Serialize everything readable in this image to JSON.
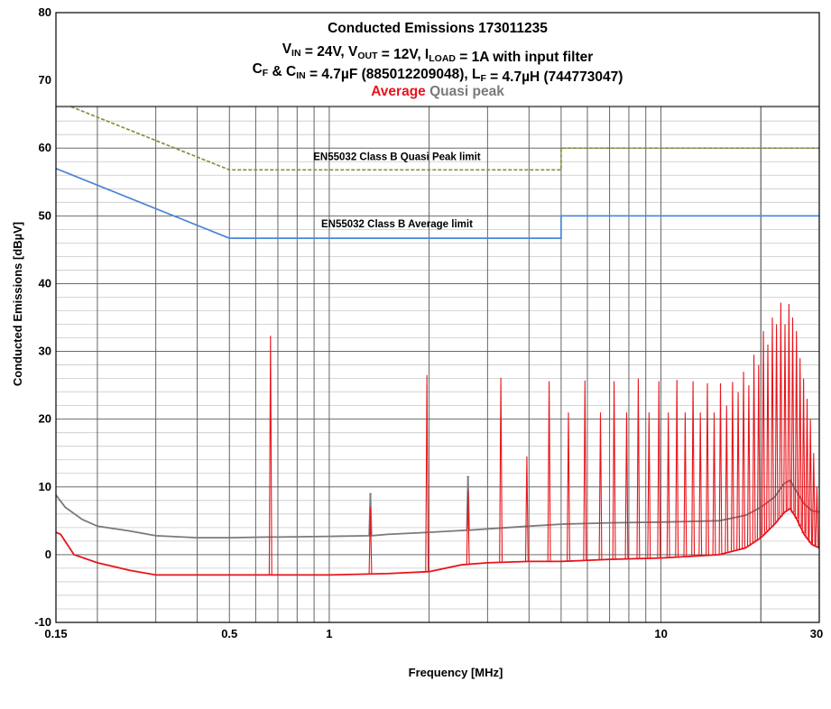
{
  "chart_data": {
    "type": "line",
    "title": "Conducted Emissions 173011235",
    "subtitle_lines": [
      [
        {
          "text": "V",
          "sub": false
        },
        {
          "text": "IN",
          "sub": true
        },
        {
          "text": " = 24V, V",
          "sub": false
        },
        {
          "text": "OUT",
          "sub": true
        },
        {
          "text": " = 12V, I",
          "sub": false
        },
        {
          "text": "LOAD",
          "sub": true
        },
        {
          "text": " = 1A with input filter",
          "sub": false
        }
      ],
      [
        {
          "text": "C",
          "sub": false
        },
        {
          "text": "F",
          "sub": true
        },
        {
          "text": " & C",
          "sub": false
        },
        {
          "text": "IN",
          "sub": true
        },
        {
          "text": " = 4.7µF (885012209048), L",
          "sub": false
        },
        {
          "text": "F",
          "sub": true
        },
        {
          "text": " = 4.7µH (744773047)",
          "sub": false
        }
      ]
    ],
    "legend": [
      {
        "label": "Average",
        "color": "#e8141b"
      },
      {
        "label": "Quasi peak",
        "color": "#7a7a7a"
      }
    ],
    "legend_position": "top-center",
    "xlabel": "Frequency [MHz]",
    "ylabel": "Conducted Emissions [dBµV]",
    "x_scale": "log",
    "xlim": [
      0.15,
      30
    ],
    "ylim": [
      -10,
      80
    ],
    "x_tick_labels": [
      {
        "value": 0.15,
        "label": "0.15"
      },
      {
        "value": 0.5,
        "label": "0.5"
      },
      {
        "value": 1,
        "label": "1"
      },
      {
        "value": 10,
        "label": "10"
      },
      {
        "value": 30,
        "label": "30"
      }
    ],
    "y_ticks": [
      -10,
      0,
      10,
      20,
      30,
      40,
      50,
      60,
      70,
      80
    ],
    "grid": true,
    "limits": [
      {
        "name": "EN55032 Class B Quasi Peak limit",
        "color": "#8a8f3a",
        "style": "dashed",
        "points": [
          [
            0.15,
            67
          ],
          [
            0.5,
            56.8
          ],
          [
            5,
            56.8
          ],
          [
            5,
            60
          ],
          [
            30,
            60
          ]
        ],
        "label_at": [
          1.6,
          58.2
        ]
      },
      {
        "name": "EN55032 Class B Average limit",
        "color": "#4a86d6",
        "style": "solid",
        "points": [
          [
            0.15,
            57
          ],
          [
            0.5,
            46.7
          ],
          [
            5,
            46.7
          ],
          [
            5,
            50
          ],
          [
            30,
            50
          ]
        ],
        "label_at": [
          1.6,
          48.3
        ]
      }
    ],
    "series": [
      {
        "name": "Quasi peak",
        "color": "#7a7a7a",
        "points": [
          [
            0.15,
            8.8
          ],
          [
            0.16,
            7
          ],
          [
            0.18,
            5.2
          ],
          [
            0.2,
            4.2
          ],
          [
            0.25,
            3.5
          ],
          [
            0.3,
            2.8
          ],
          [
            0.4,
            2.5
          ],
          [
            0.5,
            2.5
          ],
          [
            0.65,
            2.6
          ],
          [
            0.67,
            2.6
          ],
          [
            0.68,
            2.6
          ],
          [
            0.7,
            2.6
          ],
          [
            1,
            2.7
          ],
          [
            1.32,
            2.8
          ],
          [
            1.33,
            9
          ],
          [
            1.34,
            2.8
          ],
          [
            1.5,
            3
          ],
          [
            2,
            3.3
          ],
          [
            2.6,
            3.6
          ],
          [
            2.62,
            11.5
          ],
          [
            2.64,
            3.6
          ],
          [
            3,
            3.8
          ],
          [
            4,
            4.2
          ],
          [
            5,
            4.5
          ],
          [
            7,
            4.7
          ],
          [
            10,
            4.8
          ],
          [
            15,
            5.0
          ],
          [
            18,
            5.8
          ],
          [
            20,
            7
          ],
          [
            22,
            8.5
          ],
          [
            23.5,
            10.5
          ],
          [
            24.5,
            11
          ],
          [
            25.5,
            9.5
          ],
          [
            27,
            7.5
          ],
          [
            28.5,
            6.5
          ],
          [
            30,
            6.3
          ]
        ],
        "peaks": [
          [
            1.33,
            9
          ],
          [
            2.62,
            11.5
          ]
        ]
      },
      {
        "name": "Average",
        "color": "#e8141b",
        "points": [
          [
            0.15,
            3.3
          ],
          [
            0.155,
            3
          ],
          [
            0.17,
            0
          ],
          [
            0.2,
            -1.2
          ],
          [
            0.25,
            -2.3
          ],
          [
            0.3,
            -3
          ],
          [
            0.4,
            -3
          ],
          [
            0.5,
            -3
          ],
          [
            0.6,
            -3
          ],
          [
            0.8,
            -3
          ],
          [
            1,
            -3
          ],
          [
            1.5,
            -2.8
          ],
          [
            2,
            -2.5
          ],
          [
            2.5,
            -1.5
          ],
          [
            3,
            -1.2
          ],
          [
            4,
            -1
          ],
          [
            5,
            -1
          ],
          [
            7,
            -0.7
          ],
          [
            10,
            -0.5
          ],
          [
            15,
            0
          ],
          [
            18,
            1
          ],
          [
            20,
            2.5
          ],
          [
            22,
            4.5
          ],
          [
            23.5,
            6.2
          ],
          [
            24.5,
            6.8
          ],
          [
            25.5,
            5.5
          ],
          [
            27,
            3
          ],
          [
            28.5,
            1.5
          ],
          [
            30,
            1
          ]
        ],
        "peaks": [
          [
            0.665,
            32.3
          ],
          [
            1.33,
            7
          ],
          [
            1.97,
            26.5
          ],
          [
            2.62,
            9.5
          ],
          [
            3.29,
            26.1
          ],
          [
            3.94,
            14.5
          ],
          [
            4.6,
            25.6
          ],
          [
            5.26,
            21
          ],
          [
            5.9,
            25.7
          ],
          [
            6.57,
            21
          ],
          [
            7.22,
            25.6
          ],
          [
            7.88,
            21
          ],
          [
            8.54,
            26
          ],
          [
            9.2,
            21
          ],
          [
            9.86,
            25.6
          ],
          [
            10.52,
            21
          ],
          [
            11.17,
            25.8
          ],
          [
            11.83,
            21
          ],
          [
            12.49,
            25.6
          ],
          [
            13.14,
            21
          ],
          [
            13.8,
            25.3
          ],
          [
            14.46,
            21
          ],
          [
            15.11,
            25.3
          ],
          [
            15.77,
            22
          ],
          [
            16.43,
            25.5
          ],
          [
            17.08,
            24
          ],
          [
            17.74,
            27
          ],
          [
            18.4,
            25
          ],
          [
            19.06,
            29.5
          ],
          [
            19.7,
            28
          ],
          [
            20.36,
            33
          ],
          [
            21.0,
            31
          ],
          [
            21.66,
            35
          ],
          [
            22.3,
            34
          ],
          [
            22.98,
            37.2
          ],
          [
            23.64,
            34
          ],
          [
            24.3,
            37
          ],
          [
            24.94,
            35
          ],
          [
            25.6,
            33
          ],
          [
            26.26,
            29
          ],
          [
            26.9,
            26
          ],
          [
            27.56,
            23
          ],
          [
            28.22,
            20
          ],
          [
            28.86,
            15
          ],
          [
            29.52,
            10
          ]
        ]
      }
    ]
  }
}
